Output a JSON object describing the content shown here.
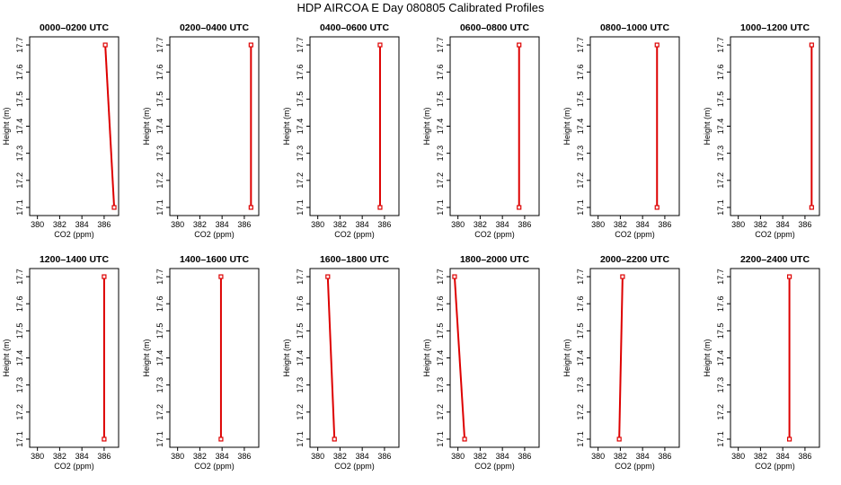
{
  "page_title": "HDP AIRCOA E  Day 080805  Calibrated Profiles",
  "chart_data": [
    {
      "type": "line",
      "title": "0000–0200 UTC",
      "xlabel": "CO2 (ppm)",
      "ylabel": "Height (m)",
      "xlim": [
        379.3,
        387.3
      ],
      "ylim": [
        17.07,
        17.73
      ],
      "x_ticks": [
        "380",
        "382",
        "384",
        "386"
      ],
      "y_ticks": [
        "17.1",
        "17.2",
        "17.3",
        "17.4",
        "17.5",
        "17.6",
        "17.7"
      ],
      "color": "#dd0000",
      "points": [
        {
          "x": 386.1,
          "y": 17.7
        },
        {
          "x": 386.9,
          "y": 17.1
        }
      ]
    },
    {
      "type": "line",
      "title": "0200–0400 UTC",
      "xlabel": "CO2 (ppm)",
      "ylabel": "Height (m)",
      "xlim": [
        379.3,
        387.3
      ],
      "ylim": [
        17.07,
        17.73
      ],
      "x_ticks": [
        "380",
        "382",
        "384",
        "386"
      ],
      "y_ticks": [
        "17.1",
        "17.2",
        "17.3",
        "17.4",
        "17.5",
        "17.6",
        "17.7"
      ],
      "color": "#dd0000",
      "points": [
        {
          "x": 386.6,
          "y": 17.7
        },
        {
          "x": 386.6,
          "y": 17.1
        }
      ]
    },
    {
      "type": "line",
      "title": "0400–0600 UTC",
      "xlabel": "CO2 (ppm)",
      "ylabel": "Height (m)",
      "xlim": [
        379.3,
        387.3
      ],
      "ylim": [
        17.07,
        17.73
      ],
      "x_ticks": [
        "380",
        "382",
        "384",
        "386"
      ],
      "y_ticks": [
        "17.1",
        "17.2",
        "17.3",
        "17.4",
        "17.5",
        "17.6",
        "17.7"
      ],
      "color": "#dd0000",
      "points": [
        {
          "x": 385.6,
          "y": 17.7
        },
        {
          "x": 385.6,
          "y": 17.1
        }
      ]
    },
    {
      "type": "line",
      "title": "0600–0800 UTC",
      "xlabel": "CO2 (ppm)",
      "ylabel": "Height (m)",
      "xlim": [
        379.3,
        387.3
      ],
      "ylim": [
        17.07,
        17.73
      ],
      "x_ticks": [
        "380",
        "382",
        "384",
        "386"
      ],
      "y_ticks": [
        "17.1",
        "17.2",
        "17.3",
        "17.4",
        "17.5",
        "17.6",
        "17.7"
      ],
      "color": "#dd0000",
      "points": [
        {
          "x": 385.5,
          "y": 17.7
        },
        {
          "x": 385.5,
          "y": 17.1
        }
      ]
    },
    {
      "type": "line",
      "title": "0800–1000 UTC",
      "xlabel": "CO2 (ppm)",
      "ylabel": "Height (m)",
      "xlim": [
        379.3,
        387.3
      ],
      "ylim": [
        17.07,
        17.73
      ],
      "x_ticks": [
        "380",
        "382",
        "384",
        "386"
      ],
      "y_ticks": [
        "17.1",
        "17.2",
        "17.3",
        "17.4",
        "17.5",
        "17.6",
        "17.7"
      ],
      "color": "#dd0000",
      "points": [
        {
          "x": 385.3,
          "y": 17.7
        },
        {
          "x": 385.3,
          "y": 17.1
        }
      ]
    },
    {
      "type": "line",
      "title": "1000–1200 UTC",
      "xlabel": "CO2 (ppm)",
      "ylabel": "Height (m)",
      "xlim": [
        379.3,
        387.3
      ],
      "ylim": [
        17.07,
        17.73
      ],
      "x_ticks": [
        "380",
        "382",
        "384",
        "386"
      ],
      "y_ticks": [
        "17.1",
        "17.2",
        "17.3",
        "17.4",
        "17.5",
        "17.6",
        "17.7"
      ],
      "color": "#dd0000",
      "points": [
        {
          "x": 386.6,
          "y": 17.7
        },
        {
          "x": 386.6,
          "y": 17.1
        }
      ]
    },
    {
      "type": "line",
      "title": "1200–1400 UTC",
      "xlabel": "CO2 (ppm)",
      "ylabel": "Height (m)",
      "xlim": [
        379.3,
        387.3
      ],
      "ylim": [
        17.07,
        17.73
      ],
      "x_ticks": [
        "380",
        "382",
        "384",
        "386"
      ],
      "y_ticks": [
        "17.1",
        "17.2",
        "17.3",
        "17.4",
        "17.5",
        "17.6",
        "17.7"
      ],
      "color": "#dd0000",
      "points": [
        {
          "x": 386.0,
          "y": 17.7
        },
        {
          "x": 386.0,
          "y": 17.1
        }
      ]
    },
    {
      "type": "line",
      "title": "1400–1600 UTC",
      "xlabel": "CO2 (ppm)",
      "ylabel": "Height (m)",
      "xlim": [
        379.3,
        387.3
      ],
      "ylim": [
        17.07,
        17.73
      ],
      "x_ticks": [
        "380",
        "382",
        "384",
        "386"
      ],
      "y_ticks": [
        "17.1",
        "17.2",
        "17.3",
        "17.4",
        "17.5",
        "17.6",
        "17.7"
      ],
      "color": "#dd0000",
      "points": [
        {
          "x": 383.9,
          "y": 17.7
        },
        {
          "x": 383.9,
          "y": 17.1
        }
      ]
    },
    {
      "type": "line",
      "title": "1600–1800 UTC",
      "xlabel": "CO2 (ppm)",
      "ylabel": "Height (m)",
      "xlim": [
        379.3,
        387.3
      ],
      "ylim": [
        17.07,
        17.73
      ],
      "x_ticks": [
        "380",
        "382",
        "384",
        "386"
      ],
      "y_ticks": [
        "17.1",
        "17.2",
        "17.3",
        "17.4",
        "17.5",
        "17.6",
        "17.7"
      ],
      "color": "#dd0000",
      "points": [
        {
          "x": 380.9,
          "y": 17.7
        },
        {
          "x": 381.5,
          "y": 17.1
        }
      ]
    },
    {
      "type": "line",
      "title": "1800–2000 UTC",
      "xlabel": "CO2 (ppm)",
      "ylabel": "Height (m)",
      "xlim": [
        379.3,
        387.3
      ],
      "ylim": [
        17.07,
        17.73
      ],
      "x_ticks": [
        "380",
        "382",
        "384",
        "386"
      ],
      "y_ticks": [
        "17.1",
        "17.2",
        "17.3",
        "17.4",
        "17.5",
        "17.6",
        "17.7"
      ],
      "color": "#dd0000",
      "points": [
        {
          "x": 379.7,
          "y": 17.7
        },
        {
          "x": 380.6,
          "y": 17.1
        }
      ]
    },
    {
      "type": "line",
      "title": "2000–2200 UTC",
      "xlabel": "CO2 (ppm)",
      "ylabel": "Height (m)",
      "xlim": [
        379.3,
        387.3
      ],
      "ylim": [
        17.07,
        17.73
      ],
      "x_ticks": [
        "380",
        "382",
        "384",
        "386"
      ],
      "y_ticks": [
        "17.1",
        "17.2",
        "17.3",
        "17.4",
        "17.5",
        "17.6",
        "17.7"
      ],
      "color": "#dd0000",
      "points": [
        {
          "x": 382.2,
          "y": 17.7
        },
        {
          "x": 381.9,
          "y": 17.1
        }
      ]
    },
    {
      "type": "line",
      "title": "2200–2400 UTC",
      "xlabel": "CO2 (ppm)",
      "ylabel": "Height (m)",
      "xlim": [
        379.3,
        387.3
      ],
      "ylim": [
        17.07,
        17.73
      ],
      "x_ticks": [
        "380",
        "382",
        "384",
        "386"
      ],
      "y_ticks": [
        "17.1",
        "17.2",
        "17.3",
        "17.4",
        "17.5",
        "17.6",
        "17.7"
      ],
      "color": "#dd0000",
      "points": [
        {
          "x": 384.6,
          "y": 17.7
        },
        {
          "x": 384.6,
          "y": 17.1
        }
      ]
    }
  ]
}
